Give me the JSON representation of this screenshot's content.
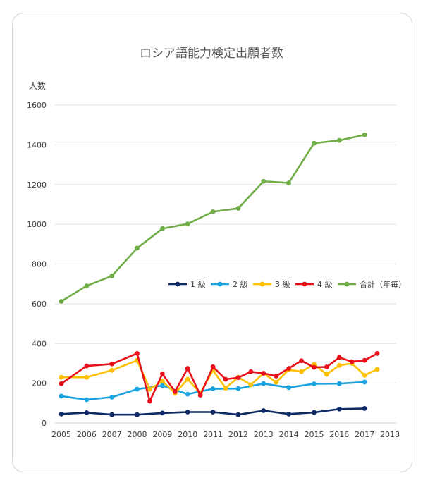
{
  "chart_data": {
    "type": "line",
    "title": "ロシア語能力検定出願者数",
    "ylabel": "人数",
    "xlabel": "",
    "ylim": [
      0,
      1600
    ],
    "xlim": [
      2005,
      2018
    ],
    "grid": true,
    "legend_position": "right, mid-height",
    "x_ticks": [
      "2005",
      "2006",
      "2007",
      "2008",
      "2009",
      "2010",
      "2011",
      "2012",
      "2013",
      "2014",
      "2015",
      "2016",
      "2017",
      "2018"
    ],
    "y_ticks": [
      "0",
      "200",
      "400",
      "600",
      "800",
      "1000",
      "1200",
      "1400",
      "1600"
    ],
    "series": [
      {
        "name": "1 級",
        "color": "#0d2a66",
        "points": [
          [
            2005,
            45
          ],
          [
            2006,
            52
          ],
          [
            2007,
            42
          ],
          [
            2008,
            42
          ],
          [
            2009,
            50
          ],
          [
            2010,
            55
          ],
          [
            2011,
            55
          ],
          [
            2012,
            42
          ],
          [
            2013,
            62
          ],
          [
            2014,
            45
          ],
          [
            2015,
            53
          ],
          [
            2016,
            70
          ],
          [
            2017,
            73
          ]
        ]
      },
      {
        "name": "2 級",
        "color": "#1ba3e0",
        "points": [
          [
            2005,
            135
          ],
          [
            2006,
            117
          ],
          [
            2007,
            130
          ],
          [
            2008,
            170
          ],
          [
            2009,
            188
          ],
          [
            2010,
            145
          ],
          [
            2011,
            172
          ],
          [
            2012,
            173
          ],
          [
            2013,
            198
          ],
          [
            2014,
            178
          ],
          [
            2015,
            197
          ],
          [
            2016,
            198
          ],
          [
            2017,
            206
          ]
        ]
      },
      {
        "name": "3 級",
        "color": "#ffc000",
        "points": [
          [
            2005,
            230
          ],
          [
            2006,
            230
          ],
          [
            2007,
            265
          ],
          [
            2008,
            315
          ],
          [
            2008.5,
            170
          ],
          [
            2009,
            210
          ],
          [
            2009.5,
            150
          ],
          [
            2010,
            220
          ],
          [
            2010.5,
            150
          ],
          [
            2011,
            265
          ],
          [
            2011.5,
            175
          ],
          [
            2012,
            230
          ],
          [
            2012.5,
            192
          ],
          [
            2013,
            250
          ],
          [
            2013.5,
            205
          ],
          [
            2014,
            268
          ],
          [
            2014.5,
            258
          ],
          [
            2015,
            295
          ],
          [
            2015.5,
            245
          ],
          [
            2016,
            290
          ],
          [
            2016.5,
            300
          ],
          [
            2017,
            240
          ],
          [
            2017.5,
            270
          ]
        ]
      },
      {
        "name": "4 級",
        "color": "#e8111b",
        "points": [
          [
            2005,
            198
          ],
          [
            2006,
            287
          ],
          [
            2007,
            297
          ],
          [
            2008,
            350
          ],
          [
            2008.5,
            110
          ],
          [
            2009,
            247
          ],
          [
            2009.5,
            158
          ],
          [
            2010,
            275
          ],
          [
            2010.5,
            140
          ],
          [
            2011,
            283
          ],
          [
            2011.5,
            220
          ],
          [
            2012,
            228
          ],
          [
            2012.5,
            258
          ],
          [
            2013,
            250
          ],
          [
            2013.5,
            236
          ],
          [
            2014,
            275
          ],
          [
            2014.5,
            313
          ],
          [
            2015,
            280
          ],
          [
            2015.5,
            282
          ],
          [
            2016,
            330
          ],
          [
            2016.5,
            308
          ],
          [
            2017,
            315
          ],
          [
            2017.5,
            350
          ]
        ]
      },
      {
        "name": "合計（年毎）",
        "color": "#70ad47",
        "points": [
          [
            2005,
            612
          ],
          [
            2006,
            690
          ],
          [
            2007,
            740
          ],
          [
            2008,
            880
          ],
          [
            2009,
            978
          ],
          [
            2010,
            1002
          ],
          [
            2011,
            1063
          ],
          [
            2012,
            1080
          ],
          [
            2013,
            1216
          ],
          [
            2014,
            1208
          ],
          [
            2015,
            1408
          ],
          [
            2016,
            1422
          ],
          [
            2017,
            1450
          ]
        ]
      }
    ]
  }
}
